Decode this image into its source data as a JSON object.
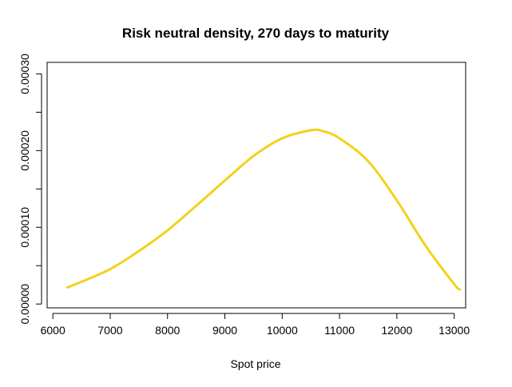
{
  "chart_data": {
    "type": "line",
    "title": "Risk neutral density, 270 days to maturity",
    "xlabel": "Spot price",
    "ylabel": "",
    "xlim": [
      5900,
      13200
    ],
    "ylim": [
      -5e-06,
      0.000315
    ],
    "x_ticks": [
      6000,
      7000,
      8000,
      9000,
      10000,
      11000,
      12000,
      13000
    ],
    "x_tick_labels": [
      "6000",
      "7000",
      "8000",
      "9000",
      "10000",
      "11000",
      "12000",
      "13000"
    ],
    "y_ticks": [
      0,
      5e-05,
      0.0001,
      0.00015,
      0.0002,
      0.00025,
      0.0003
    ],
    "y_tick_labels": [
      "0.00000",
      "",
      "0.00010",
      "",
      "0.00020",
      "",
      "0.00030"
    ],
    "grid": false,
    "series": [
      {
        "name": "",
        "color": "#f2d21a",
        "x": [
          6250,
          6500,
          7000,
          7500,
          8000,
          8500,
          9000,
          9500,
          10000,
          10500,
          10700,
          11000,
          11500,
          12000,
          12500,
          13000,
          13100
        ],
        "y": [
          2.15e-05,
          2.9e-05,
          4.55e-05,
          6.9e-05,
          9.6e-05,
          0.000128,
          0.000161,
          0.000193,
          0.000216,
          0.0002265,
          0.0002255,
          0.000216,
          0.000186,
          0.000135,
          7.6e-05,
          2.6e-05,
          1.9e-05
        ]
      }
    ]
  }
}
